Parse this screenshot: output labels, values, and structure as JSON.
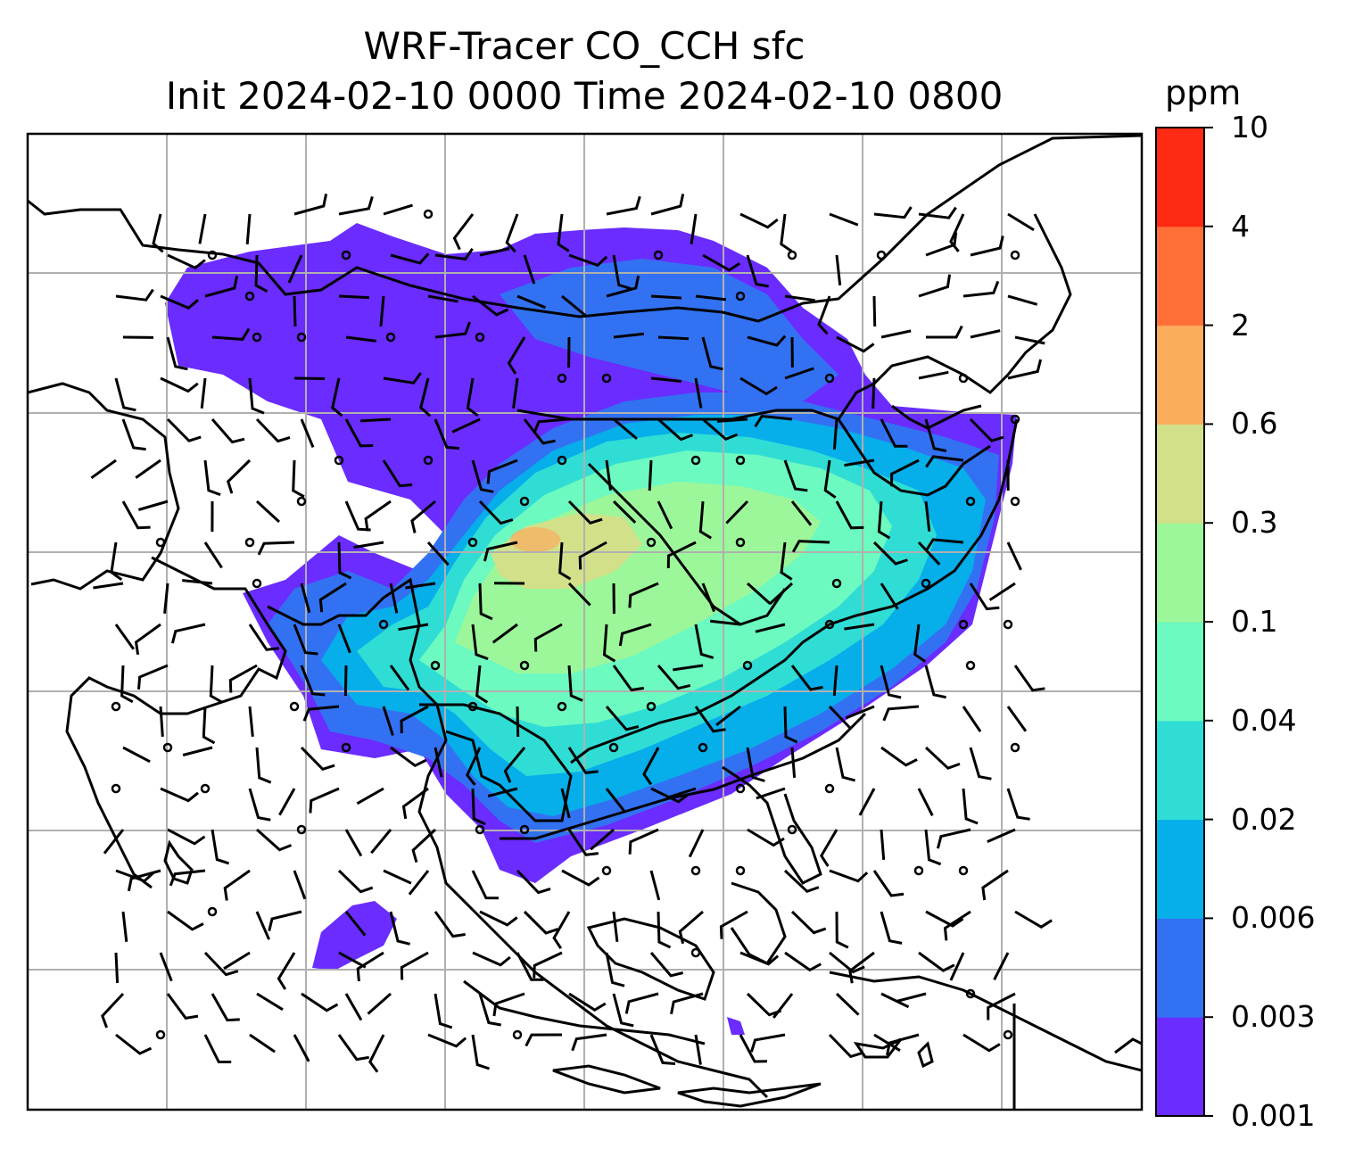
{
  "title": {
    "line1": "WRF-Tracer CO_CCH sfc",
    "line2": "Init 2024-02-10 0000 Time 2024-02-10 0800"
  },
  "colorbar": {
    "unit": "ppm",
    "levels": [
      "0.001",
      "0.003",
      "0.006",
      "0.02",
      "0.04",
      "0.1",
      "0.3",
      "0.6",
      "2",
      "4",
      "10"
    ],
    "colors": [
      "#6a2cff",
      "#3272f2",
      "#06aeea",
      "#30ddd5",
      "#6cfac0",
      "#9cf79a",
      "#d1e089",
      "#fbad5d",
      "#ff7038",
      "#ff2a14"
    ]
  },
  "map": {
    "projection": "lambert-conformal",
    "gridlines": true,
    "coastlines": true,
    "field": "CO_CCH tracer concentration (filled contours)",
    "overlay": "wind-barbs"
  }
}
